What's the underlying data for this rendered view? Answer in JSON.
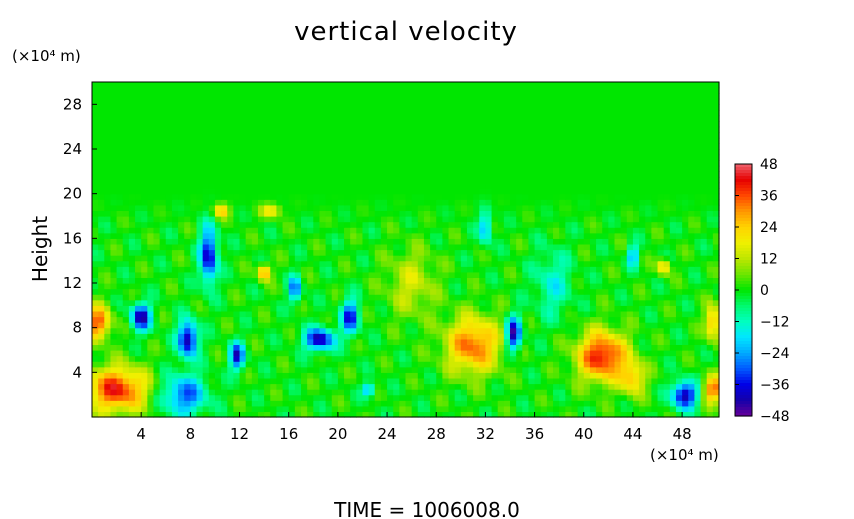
{
  "chart_data": {
    "type": "heatmap",
    "title": "vertical velocity",
    "ylabel": "Height",
    "yunit": "(×10⁴ m)",
    "xunit": "(×10⁴ m)",
    "xlim": [
      0,
      51
    ],
    "ylim": [
      0,
      30
    ],
    "x_ticks": [
      4,
      8,
      12,
      16,
      20,
      24,
      28,
      32,
      36,
      40,
      44,
      48
    ],
    "y_ticks": [
      4,
      8,
      12,
      16,
      20,
      24,
      28
    ],
    "colorbar": {
      "ticks": [
        48,
        36,
        24,
        12,
        0,
        -12,
        -24,
        -36,
        -48
      ],
      "range": [
        -48,
        48
      ]
    },
    "features": [
      {
        "x": 2.0,
        "y": 2.5,
        "rx": 2.5,
        "ry": 2.0,
        "v": 40
      },
      {
        "x": 0.5,
        "y": 8.5,
        "rx": 1.0,
        "ry": 1.5,
        "v": 36
      },
      {
        "x": 7.5,
        "y": 2.0,
        "rx": 1.8,
        "ry": 1.8,
        "v": -30
      },
      {
        "x": 4.0,
        "y": 9.0,
        "rx": 0.8,
        "ry": 1.2,
        "v": -42
      },
      {
        "x": 7.8,
        "y": 7.0,
        "rx": 0.8,
        "ry": 1.6,
        "v": -44
      },
      {
        "x": 9.5,
        "y": 14.5,
        "rx": 0.7,
        "ry": 2.5,
        "v": -40
      },
      {
        "x": 11.8,
        "y": 5.5,
        "rx": 0.6,
        "ry": 1.2,
        "v": -38
      },
      {
        "x": 14.0,
        "y": 13.0,
        "rx": 0.5,
        "ry": 0.7,
        "v": 34
      },
      {
        "x": 10.5,
        "y": 18.5,
        "rx": 0.6,
        "ry": 0.6,
        "v": 28
      },
      {
        "x": 18.5,
        "y": 7.0,
        "rx": 1.2,
        "ry": 1.0,
        "v": -42
      },
      {
        "x": 21.0,
        "y": 9.0,
        "rx": 0.7,
        "ry": 1.5,
        "v": -36
      },
      {
        "x": 16.5,
        "y": 11.5,
        "rx": 0.5,
        "ry": 1.2,
        "v": -30
      },
      {
        "x": 22.5,
        "y": 2.5,
        "rx": 0.5,
        "ry": 0.6,
        "v": -26
      },
      {
        "x": 31.0,
        "y": 6.5,
        "rx": 2.2,
        "ry": 2.5,
        "v": 34
      },
      {
        "x": 34.3,
        "y": 7.5,
        "rx": 0.6,
        "ry": 1.5,
        "v": -44
      },
      {
        "x": 32.0,
        "y": 17.0,
        "rx": 0.5,
        "ry": 1.5,
        "v": -24
      },
      {
        "x": 41.5,
        "y": 5.5,
        "rx": 2.0,
        "ry": 2.2,
        "v": 42
      },
      {
        "x": 44.0,
        "y": 3.5,
        "rx": 1.0,
        "ry": 1.5,
        "v": 24
      },
      {
        "x": 48.2,
        "y": 2.0,
        "rx": 1.0,
        "ry": 1.2,
        "v": -44
      },
      {
        "x": 50.5,
        "y": 2.5,
        "rx": 0.8,
        "ry": 1.2,
        "v": 34
      },
      {
        "x": 50.5,
        "y": 8.5,
        "rx": 0.6,
        "ry": 1.5,
        "v": 30
      },
      {
        "x": 46.5,
        "y": 13.5,
        "rx": 0.5,
        "ry": 0.7,
        "v": 26
      },
      {
        "x": 44.0,
        "y": 14.5,
        "rx": 0.4,
        "ry": 1.0,
        "v": -26
      },
      {
        "x": 14.5,
        "y": 18.5,
        "rx": 0.8,
        "ry": 0.6,
        "v": 22
      },
      {
        "x": 26.0,
        "y": 12.0,
        "rx": 2.0,
        "ry": 3.0,
        "v": 14
      },
      {
        "x": 37.5,
        "y": 12.0,
        "rx": 1.5,
        "ry": 3.0,
        "v": -14
      }
    ]
  },
  "footer": {
    "time_label": "TIME  =  1006008.0"
  }
}
